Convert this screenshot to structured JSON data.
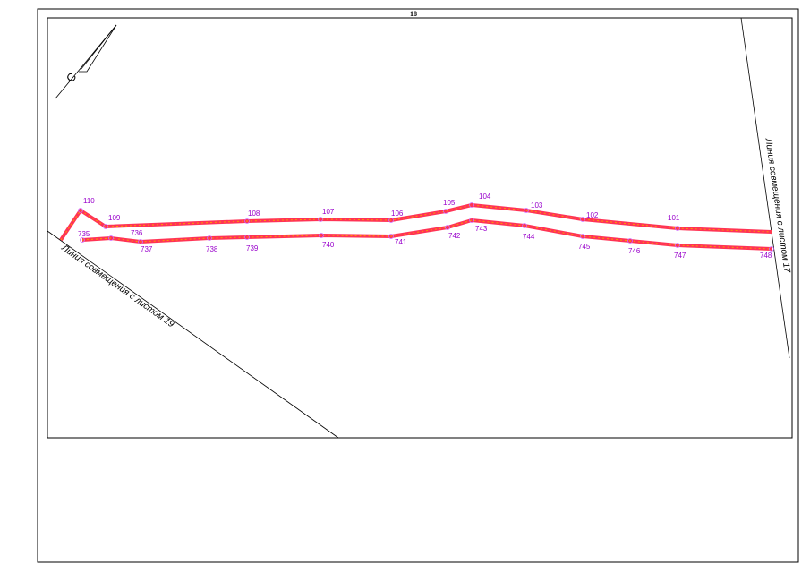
{
  "sheet_number": "18",
  "north_label": "С",
  "upper_points": [
    {
      "label": "110"
    },
    {
      "label": "109"
    },
    {
      "label": "108"
    },
    {
      "label": "107"
    },
    {
      "label": "106"
    },
    {
      "label": "105"
    },
    {
      "label": "104"
    },
    {
      "label": "103"
    },
    {
      "label": "102"
    },
    {
      "label": "101"
    }
  ],
  "lower_points": [
    {
      "label": "735"
    },
    {
      "label": "736"
    },
    {
      "label": "737"
    },
    {
      "label": "738"
    },
    {
      "label": "739"
    },
    {
      "label": "740"
    },
    {
      "label": "741"
    },
    {
      "label": "742"
    },
    {
      "label": "743"
    },
    {
      "label": "744"
    },
    {
      "label": "745"
    },
    {
      "label": "746"
    },
    {
      "label": "747"
    },
    {
      "label": "748"
    }
  ],
  "match_lines": [
    {
      "label": "Линия совмещения с листом 19"
    },
    {
      "label": "Линия совмещения с листом 17"
    }
  ]
}
